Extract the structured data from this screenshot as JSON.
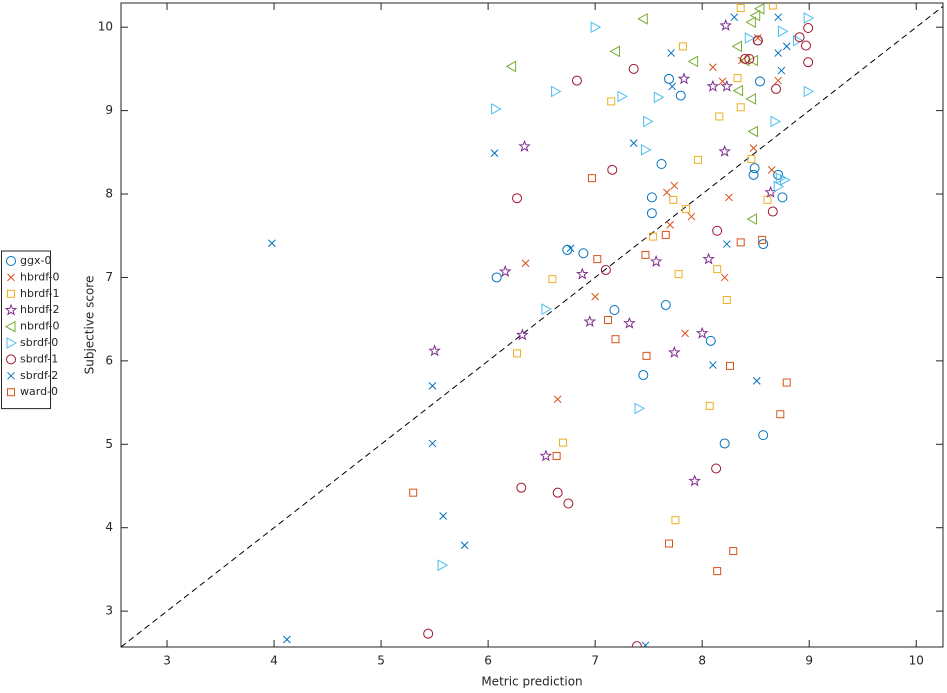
{
  "chart_data": {
    "type": "scatter",
    "xlabel": "Metric prediction",
    "ylabel": "Subjective score",
    "xlim": [
      2.57,
      10.25
    ],
    "ylim": [
      2.57,
      10.29
    ],
    "xticks": [
      3,
      4,
      5,
      6,
      7,
      8,
      9,
      10
    ],
    "yticks": [
      3,
      4,
      5,
      6,
      7,
      8,
      9,
      10
    ],
    "identity_line": true,
    "legend": "outside-left",
    "series": [
      {
        "name": "ggx-0",
        "color": "#0072BD",
        "marker": "o",
        "x": [
          6.08,
          6.74,
          6.89,
          7.18,
          7.66,
          7.45,
          7.53,
          7.53,
          7.62,
          7.69,
          7.8,
          8.08,
          8.21,
          8.57,
          8.57,
          8.48,
          8.49,
          8.71,
          8.75,
          8.54,
          8.52
        ],
        "values": [
          7.0,
          7.33,
          7.29,
          6.61,
          6.67,
          5.83,
          7.77,
          7.96,
          8.36,
          9.38,
          9.18,
          6.24,
          5.01,
          5.11,
          7.4,
          8.23,
          8.31,
          8.23,
          7.96,
          9.35,
          9.84
        ]
      },
      {
        "name": "hbrdf-0",
        "color": "#D95319",
        "marker": "x",
        "x": [
          6.35,
          6.65,
          7.0,
          7.67,
          7.74,
          7.7,
          7.9,
          7.84,
          8.1,
          8.19,
          8.25,
          8.21,
          8.48,
          8.52,
          8.65,
          8.71,
          8.37
        ],
        "values": [
          7.17,
          5.54,
          6.77,
          8.02,
          8.1,
          7.63,
          7.73,
          6.33,
          9.52,
          9.35,
          7.96,
          7.0,
          8.55,
          9.87,
          8.29,
          9.36,
          9.6
        ]
      },
      {
        "name": "hbrdf-1",
        "color": "#EDB120",
        "marker": "s",
        "x": [
          6.27,
          6.6,
          6.7,
          7.15,
          7.54,
          7.73,
          7.75,
          7.78,
          7.82,
          7.85,
          7.96,
          8.07,
          8.14,
          8.16,
          8.23,
          8.36,
          8.36,
          8.46,
          8.61,
          8.66,
          8.33
        ],
        "values": [
          6.09,
          6.98,
          5.02,
          9.11,
          7.49,
          7.93,
          4.09,
          7.04,
          9.77,
          7.82,
          8.41,
          5.46,
          7.1,
          8.93,
          6.73,
          10.23,
          9.04,
          8.42,
          7.93,
          10.26,
          9.39
        ]
      },
      {
        "name": "hbrdf-2",
        "color": "#7E2F8E",
        "marker": "p",
        "x": [
          5.5,
          6.16,
          6.32,
          6.34,
          6.54,
          6.88,
          6.95,
          7.32,
          7.57,
          7.83,
          7.74,
          8.0,
          8.06,
          7.93,
          8.1,
          8.21,
          8.22,
          8.64,
          8.23
        ],
        "values": [
          6.12,
          7.07,
          6.31,
          8.57,
          4.86,
          7.04,
          6.47,
          6.45,
          7.19,
          9.38,
          6.1,
          6.33,
          7.22,
          4.56,
          9.29,
          8.51,
          10.02,
          8.02,
          9.29
        ]
      },
      {
        "name": "nbrdf-0",
        "color": "#77AC30",
        "marker": "<",
        "x": [
          6.22,
          7.19,
          7.45,
          7.92,
          8.33,
          8.34,
          8.46,
          8.46,
          8.48,
          8.47,
          8.48,
          8.5,
          8.4,
          8.54
        ],
        "values": [
          9.53,
          9.71,
          10.1,
          9.59,
          9.77,
          9.24,
          9.14,
          10.06,
          8.75,
          7.7,
          9.6,
          10.14,
          9.6,
          10.22
        ]
      },
      {
        "name": "sbrdf-0",
        "color": "#4DBEEE",
        "marker": ">",
        "x": [
          6.07,
          6.54,
          6.63,
          7.0,
          7.25,
          7.41,
          7.47,
          7.49,
          7.59,
          5.57,
          8.44,
          8.68,
          8.71,
          8.73,
          8.77,
          8.75,
          8.99,
          8.99,
          8.89
        ],
        "values": [
          9.02,
          6.62,
          9.23,
          10.0,
          9.17,
          5.43,
          8.53,
          8.87,
          9.16,
          3.55,
          9.87,
          8.87,
          8.09,
          8.19,
          8.17,
          9.95,
          10.11,
          9.23,
          9.84
        ]
      },
      {
        "name": "sbrdf-1",
        "color": "#A2142F",
        "marker": "o",
        "x": [
          6.27,
          6.31,
          6.65,
          6.75,
          6.83,
          7.1,
          7.16,
          7.36,
          5.44,
          7.39,
          8.14,
          8.13,
          8.4,
          8.44,
          8.52,
          8.66,
          8.69,
          8.99,
          8.97,
          8.99,
          8.91
        ],
        "values": [
          7.95,
          4.48,
          4.42,
          4.29,
          9.36,
          7.09,
          8.29,
          9.5,
          2.73,
          2.58,
          7.56,
          4.71,
          9.62,
          9.62,
          9.84,
          7.79,
          9.26,
          9.99,
          9.78,
          9.58,
          9.88
        ]
      },
      {
        "name": "sbrdf-2",
        "color": "#0072BD",
        "marker": "x",
        "x": [
          3.98,
          4.12,
          5.48,
          5.48,
          5.58,
          5.78,
          6.06,
          6.77,
          7.36,
          7.47,
          7.71,
          7.72,
          8.1,
          8.23,
          8.3,
          8.51,
          8.71,
          8.74,
          8.71,
          8.79
        ],
        "values": [
          7.41,
          2.66,
          5.7,
          5.01,
          4.14,
          3.79,
          8.49,
          7.35,
          8.61,
          2.59,
          9.69,
          9.29,
          5.95,
          7.4,
          10.12,
          5.76,
          10.12,
          9.48,
          9.69,
          9.77
        ]
      },
      {
        "name": "ward-0",
        "color": "#D95319",
        "marker": "s",
        "x": [
          5.3,
          6.64,
          6.97,
          7.02,
          7.12,
          7.19,
          7.47,
          7.48,
          7.69,
          7.66,
          8.14,
          8.29,
          8.26,
          8.36,
          8.56,
          8.73,
          8.79
        ],
        "values": [
          4.42,
          4.86,
          8.19,
          7.22,
          6.49,
          6.26,
          7.27,
          6.06,
          3.81,
          7.51,
          3.48,
          3.72,
          5.94,
          7.42,
          7.45,
          5.36,
          5.74
        ]
      }
    ]
  }
}
